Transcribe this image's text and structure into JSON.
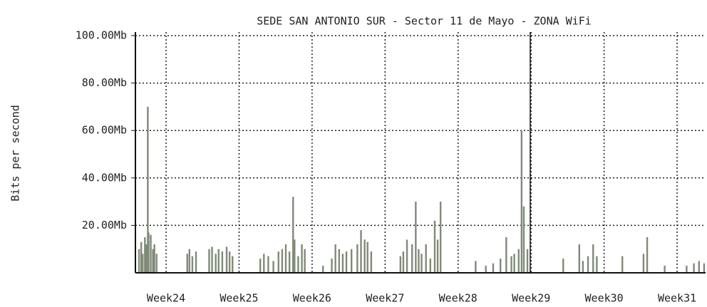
{
  "chart_data": {
    "type": "bar",
    "title": "SEDE SAN ANTONIO SUR - Sector 11 de Mayo - ZONA WiFi",
    "y_label": "Bits per second",
    "color": "#7f8a78",
    "grid": true,
    "xlim": [
      23.58,
      31.39
    ],
    "ylim": [
      0,
      100
    ],
    "xticks": [
      {
        "value": 24,
        "label": "Week24"
      },
      {
        "value": 25,
        "label": "Week25"
      },
      {
        "value": 26,
        "label": "Week26"
      },
      {
        "value": 27,
        "label": "Week27"
      },
      {
        "value": 28,
        "label": "Week28"
      },
      {
        "value": 29,
        "label": "Week29"
      },
      {
        "value": 30,
        "label": "Week30"
      },
      {
        "value": 31,
        "label": "Week31"
      }
    ],
    "yticks": [
      {
        "value": 20,
        "label": "20.00Mb"
      },
      {
        "value": 40,
        "label": "40.00Mb"
      },
      {
        "value": 60,
        "label": "60.00Mb"
      },
      {
        "value": 80,
        "label": "80.00Mb"
      },
      {
        "value": 100,
        "label": "100.00Mb"
      }
    ],
    "x": [
      23.63,
      23.66,
      23.68,
      23.71,
      23.73,
      23.75,
      23.76,
      23.79,
      23.82,
      23.84,
      23.87,
      24.29,
      24.32,
      24.36,
      24.41,
      24.59,
      24.63,
      24.68,
      24.72,
      24.77,
      24.83,
      24.87,
      24.91,
      25.29,
      25.34,
      25.4,
      25.47,
      25.54,
      25.59,
      25.64,
      25.69,
      25.74,
      25.76,
      25.81,
      25.86,
      25.9,
      26.15,
      26.27,
      26.32,
      26.37,
      26.42,
      26.47,
      26.54,
      26.62,
      26.67,
      26.72,
      26.76,
      26.81,
      27.21,
      27.25,
      27.3,
      27.37,
      27.42,
      27.46,
      27.5,
      27.56,
      27.62,
      27.68,
      27.72,
      27.76,
      28.24,
      28.38,
      28.48,
      28.58,
      28.66,
      28.73,
      28.77,
      28.83,
      28.87,
      28.9,
      28.95,
      29.44,
      29.66,
      29.71,
      29.78,
      29.85,
      29.9,
      30.25,
      30.54,
      30.59,
      30.83,
      31.13,
      31.23,
      31.3,
      31.37
    ],
    "values": [
      10,
      13,
      8,
      15,
      12,
      70,
      17,
      16,
      10,
      12,
      8,
      8,
      10,
      7,
      9,
      10,
      11,
      8,
      10,
      9,
      11,
      9,
      7,
      6,
      8,
      7,
      5,
      9,
      10,
      12,
      9,
      32,
      14,
      7,
      12,
      10,
      3,
      6,
      12,
      10,
      8,
      9,
      10,
      12,
      18,
      14,
      13,
      9,
      7,
      9,
      14,
      12,
      30,
      10,
      8,
      12,
      6,
      22,
      14,
      30,
      5,
      3,
      4,
      6,
      15,
      7,
      8,
      10,
      60,
      28,
      10,
      6,
      12,
      5,
      7,
      12,
      7,
      7,
      8,
      15,
      3,
      3,
      4,
      5,
      4
    ]
  }
}
